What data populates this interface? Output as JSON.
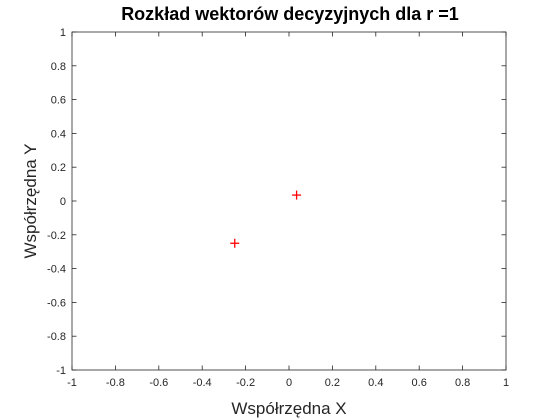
{
  "chart_data": {
    "type": "scatter",
    "title": "Rozkład wektorów decyzyjnych dla r =1",
    "xlabel": "Współrzędna X",
    "ylabel": "Współrzędna Y",
    "xlim": [
      -1,
      1
    ],
    "ylim": [
      -1,
      1
    ],
    "xticks": [
      "-1",
      "-0.8",
      "-0.6",
      "-0.4",
      "-0.2",
      "0",
      "0.2",
      "0.4",
      "0.6",
      "0.8",
      "1"
    ],
    "yticks": [
      "-1",
      "-0.8",
      "-0.6",
      "-0.4",
      "-0.2",
      "0",
      "0.2",
      "0.4",
      "0.6",
      "0.8",
      "1"
    ],
    "grid": false,
    "marker": "plus",
    "marker_color": "#ff0000",
    "points": [
      {
        "x": -0.25,
        "y": -0.25
      },
      {
        "x": 0.035,
        "y": 0.035
      }
    ]
  }
}
